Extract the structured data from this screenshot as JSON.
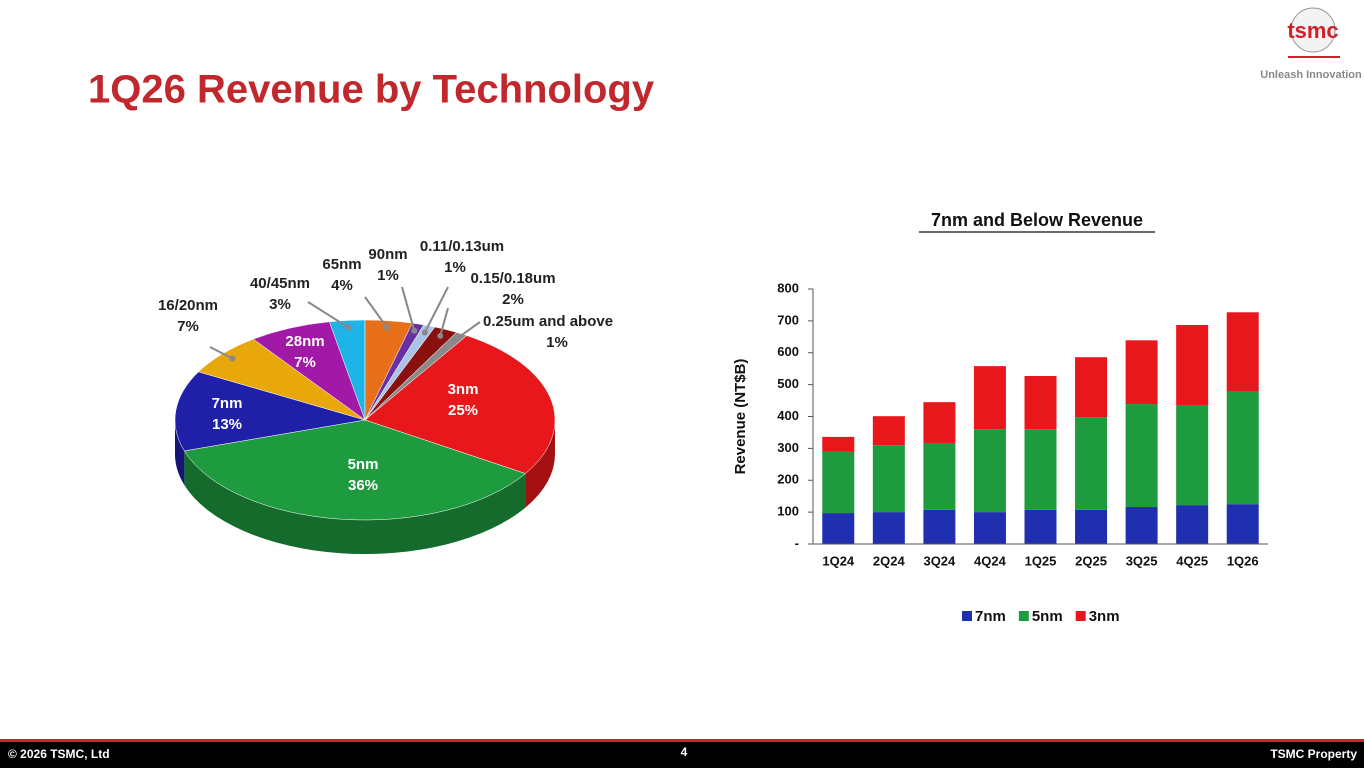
{
  "slide": {
    "title": "1Q26 Revenue by Technology",
    "logo": "tsmc",
    "tagline": "Unleash Innovation",
    "copyright": "© 2026 TSMC, Ltd",
    "page_number": "4",
    "footer_right": "TSMC Property"
  },
  "chart_data": [
    {
      "type": "pie",
      "categories": [
        "3nm",
        "5nm",
        "7nm",
        "16/20nm",
        "28nm",
        "40/45nm",
        "65nm",
        "90nm",
        "0.11/0.13um",
        "0.15/0.18um",
        "0.25um and above"
      ],
      "values": [
        25,
        36,
        13,
        7,
        7,
        3,
        4,
        1,
        1,
        2,
        1
      ],
      "value_labels": [
        "25%",
        "36%",
        "13%",
        "7%",
        "7%",
        "3%",
        "4%",
        "1%",
        "1%",
        "2%",
        "1%"
      ],
      "colors": [
        "#e8171b",
        "#1e9a3f",
        "#1f1fa8",
        "#e8a80c",
        "#a219a8",
        "#1eb4e8",
        "#e8701a",
        "#6a2fa0",
        "#a9c4e6",
        "#8a1010",
        "#8a8a8a"
      ]
    },
    {
      "type": "stacked_bar",
      "title": "7nm and Below Revenue",
      "ylabel": "Revenue (NT$B)",
      "categories": [
        "1Q24",
        "2Q24",
        "3Q24",
        "4Q24",
        "1Q25",
        "2Q25",
        "3Q25",
        "4Q25",
        "1Q26"
      ],
      "series": [
        {
          "name": "7nm",
          "color": "#1f2fb0",
          "values": [
            97,
            100,
            107,
            100,
            107,
            107,
            116,
            122,
            125
          ]
        },
        {
          "name": "5nm",
          "color": "#1e9a3f",
          "values": [
            192,
            210,
            210,
            260,
            253,
            291,
            323,
            314,
            355
          ]
        },
        {
          "name": "3nm",
          "color": "#e8171b",
          "values": [
            47,
            91,
            128,
            198,
            167,
            188,
            200,
            251,
            247
          ]
        }
      ],
      "ylim": [
        0,
        800
      ],
      "yticks": [
        {
          "value": 0,
          "label": "-"
        },
        100,
        200,
        300,
        400,
        500,
        600,
        700,
        800
      ],
      "legend": "bottom"
    }
  ]
}
